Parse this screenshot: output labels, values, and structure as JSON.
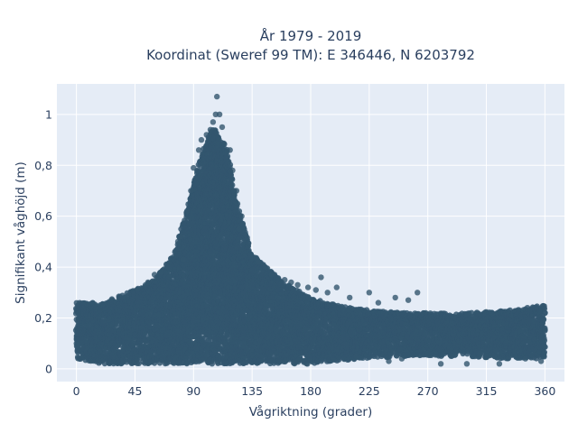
{
  "chart_data": {
    "type": "scatter",
    "title_lines": [
      "År 1979 - 2019",
      "Koordinat (Sweref 99 TM): E 346446, N 6203792"
    ],
    "xlabel": "Vågriktning (grader)",
    "ylabel": "Signifikant våghöjd (m)",
    "xlim": [
      -15,
      375
    ],
    "ylim": [
      -0.05,
      1.12
    ],
    "xticks": [
      0,
      45,
      90,
      135,
      180,
      225,
      270,
      315,
      360
    ],
    "xtick_labels": [
      "0",
      "45",
      "90",
      "135",
      "180",
      "225",
      "270",
      "315",
      "360"
    ],
    "yticks": [
      0,
      0.2,
      0.4,
      0.6,
      0.8,
      1
    ],
    "ytick_labels": [
      "0",
      "0,2",
      "0,4",
      "0,6",
      "0,8",
      "1"
    ],
    "grid": true,
    "series": [
      {
        "color": "#33566e",
        "envelope": [
          {
            "x": 0,
            "y_min": 0.04,
            "y_max": 0.26
          },
          {
            "x": 20,
            "y_min": 0.02,
            "y_max": 0.26
          },
          {
            "x": 45,
            "y_min": 0.02,
            "y_max": 0.31
          },
          {
            "x": 60,
            "y_min": 0.02,
            "y_max": 0.35
          },
          {
            "x": 75,
            "y_min": 0.02,
            "y_max": 0.45
          },
          {
            "x": 85,
            "y_min": 0.02,
            "y_max": 0.62
          },
          {
            "x": 95,
            "y_min": 0.02,
            "y_max": 0.83
          },
          {
            "x": 105,
            "y_min": 0.02,
            "y_max": 0.95
          },
          {
            "x": 115,
            "y_min": 0.02,
            "y_max": 0.88
          },
          {
            "x": 125,
            "y_min": 0.02,
            "y_max": 0.62
          },
          {
            "x": 135,
            "y_min": 0.02,
            "y_max": 0.45
          },
          {
            "x": 150,
            "y_min": 0.02,
            "y_max": 0.38
          },
          {
            "x": 165,
            "y_min": 0.02,
            "y_max": 0.32
          },
          {
            "x": 180,
            "y_min": 0.02,
            "y_max": 0.28
          },
          {
            "x": 200,
            "y_min": 0.03,
            "y_max": 0.25
          },
          {
            "x": 225,
            "y_min": 0.04,
            "y_max": 0.23
          },
          {
            "x": 250,
            "y_min": 0.05,
            "y_max": 0.22
          },
          {
            "x": 270,
            "y_min": 0.05,
            "y_max": 0.22
          },
          {
            "x": 300,
            "y_min": 0.05,
            "y_max": 0.22
          },
          {
            "x": 330,
            "y_min": 0.04,
            "y_max": 0.23
          },
          {
            "x": 360,
            "y_min": 0.04,
            "y_max": 0.25
          }
        ],
        "outliers": [
          {
            "x": 108,
            "y": 1.07
          },
          {
            "x": 107,
            "y": 1.0
          },
          {
            "x": 110,
            "y": 1.0
          },
          {
            "x": 105,
            "y": 0.97
          },
          {
            "x": 112,
            "y": 0.95
          },
          {
            "x": 103,
            "y": 0.94
          },
          {
            "x": 100,
            "y": 0.92
          },
          {
            "x": 96,
            "y": 0.9
          },
          {
            "x": 94,
            "y": 0.86
          },
          {
            "x": 118,
            "y": 0.86
          },
          {
            "x": 120,
            "y": 0.78
          },
          {
            "x": 90,
            "y": 0.79
          },
          {
            "x": 88,
            "y": 0.7
          },
          {
            "x": 123,
            "y": 0.7
          },
          {
            "x": 85,
            "y": 0.62
          },
          {
            "x": 127,
            "y": 0.6
          },
          {
            "x": 125,
            "y": 0.55
          },
          {
            "x": 80,
            "y": 0.52
          },
          {
            "x": 78,
            "y": 0.5
          },
          {
            "x": 82,
            "y": 0.43
          },
          {
            "x": 140,
            "y": 0.42
          },
          {
            "x": 145,
            "y": 0.4
          },
          {
            "x": 150,
            "y": 0.37
          },
          {
            "x": 188,
            "y": 0.36
          },
          {
            "x": 184,
            "y": 0.31
          },
          {
            "x": 178,
            "y": 0.32
          },
          {
            "x": 200,
            "y": 0.32
          },
          {
            "x": 193,
            "y": 0.3
          },
          {
            "x": 225,
            "y": 0.3
          },
          {
            "x": 262,
            "y": 0.3
          },
          {
            "x": 245,
            "y": 0.28
          },
          {
            "x": 255,
            "y": 0.27
          },
          {
            "x": 210,
            "y": 0.28
          },
          {
            "x": 232,
            "y": 0.26
          },
          {
            "x": 170,
            "y": 0.33
          },
          {
            "x": 165,
            "y": 0.34
          },
          {
            "x": 160,
            "y": 0.35
          },
          {
            "x": 280,
            "y": 0.02
          },
          {
            "x": 300,
            "y": 0.02
          },
          {
            "x": 325,
            "y": 0.02
          },
          {
            "x": 288,
            "y": 0.05
          },
          {
            "x": 250,
            "y": 0.04
          },
          {
            "x": 215,
            "y": 0.05
          },
          {
            "x": 240,
            "y": 0.03
          },
          {
            "x": 345,
            "y": 0.04
          },
          {
            "x": 357,
            "y": 0.03
          },
          {
            "x": 310,
            "y": 0.06
          },
          {
            "x": 270,
            "y": 0.06
          },
          {
            "x": 60,
            "y": 0.37
          },
          {
            "x": 55,
            "y": 0.34
          },
          {
            "x": 70,
            "y": 0.4
          },
          {
            "x": 65,
            "y": 0.38
          }
        ]
      }
    ]
  }
}
